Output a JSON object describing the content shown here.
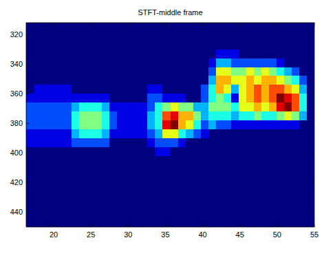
{
  "chart_data": {
    "type": "heatmap",
    "title": "STFT-middle frame",
    "xlim": [
      16.3,
      55
    ],
    "ylim": [
      312,
      450
    ],
    "xticks": [
      20,
      25,
      30,
      35,
      40,
      45,
      50,
      55
    ],
    "yticks": [
      320,
      340,
      360,
      380,
      400,
      420,
      440
    ],
    "zlim": [
      0,
      10
    ],
    "cells": [
      [
        0,
        0,
        0,
        0,
        0,
        0,
        0,
        0,
        0,
        0,
        0,
        0,
        0,
        0,
        0,
        0,
        0,
        0,
        0,
        0,
        0,
        0,
        0,
        0,
        0,
        0,
        0,
        0,
        0,
        0,
        0,
        0,
        0,
        0,
        0,
        0,
        0,
        0
      ],
      [
        0,
        0,
        0,
        0,
        0,
        0,
        0,
        0,
        0,
        0,
        0,
        0,
        0,
        0,
        0,
        0,
        0,
        0,
        0,
        0,
        0,
        0,
        0,
        0,
        0,
        0,
        0,
        0,
        0,
        0,
        0,
        0,
        0,
        0,
        0,
        0,
        0,
        0
      ],
      [
        0,
        0,
        0,
        0,
        0,
        0,
        0,
        0,
        0,
        0,
        0,
        0,
        0,
        0,
        0,
        0,
        0,
        0,
        0,
        0,
        0,
        0,
        0,
        0,
        0,
        0,
        0,
        0,
        0,
        0,
        0,
        0,
        0,
        0,
        0,
        0,
        0,
        0
      ],
      [
        0,
        0,
        0,
        0,
        0,
        0,
        0,
        0,
        0,
        0,
        0,
        0,
        0,
        0,
        0,
        0,
        0,
        0,
        0,
        0,
        0,
        0,
        0,
        0,
        0,
        1,
        1,
        1,
        0,
        0,
        0,
        0,
        0,
        0,
        0,
        0,
        0,
        0
      ],
      [
        0,
        0,
        0,
        0,
        0,
        0,
        0,
        0,
        0,
        0,
        0,
        0,
        0,
        0,
        0,
        0,
        0,
        0,
        0,
        0,
        0,
        0,
        0,
        0,
        1,
        3,
        3,
        2,
        2,
        2,
        2,
        2,
        2,
        1,
        0,
        0,
        0,
        0
      ],
      [
        0,
        0,
        0,
        0,
        0,
        0,
        0,
        0,
        0,
        0,
        0,
        0,
        0,
        0,
        0,
        0,
        0,
        0,
        0,
        0,
        0,
        0,
        0,
        0,
        2,
        6,
        6,
        5,
        5,
        6,
        5,
        6,
        5,
        4,
        3,
        2,
        0,
        0
      ],
      [
        0,
        0,
        0,
        0,
        0,
        0,
        0,
        0,
        0,
        0,
        0,
        0,
        0,
        0,
        0,
        0,
        0,
        0,
        0,
        0,
        0,
        0,
        0,
        0,
        3,
        7,
        7,
        6,
        6,
        7,
        6,
        7,
        7,
        6,
        5,
        4,
        2,
        0
      ],
      [
        0,
        1,
        1,
        1,
        1,
        1,
        0,
        0,
        0,
        0,
        0,
        0,
        0,
        0,
        0,
        0,
        1,
        1,
        0,
        0,
        0,
        0,
        0,
        2,
        4,
        7,
        6,
        3,
        6,
        7,
        8,
        7,
        8,
        8,
        7,
        6,
        3,
        0
      ],
      [
        1,
        1,
        1,
        1,
        1,
        1,
        1,
        1,
        1,
        1,
        1,
        0,
        0,
        0,
        0,
        0,
        2,
        2,
        1,
        1,
        1,
        0,
        0,
        2,
        4,
        5,
        4,
        1,
        6,
        7,
        8,
        7,
        8,
        10,
        9,
        8,
        4,
        0
      ],
      [
        2,
        2,
        2,
        2,
        2,
        2,
        3,
        4,
        4,
        4,
        3,
        1,
        1,
        1,
        1,
        1,
        2,
        4,
        5,
        6,
        5,
        5,
        3,
        3,
        5,
        5,
        5,
        4,
        6,
        6,
        7,
        6,
        7,
        9,
        10,
        8,
        4,
        0
      ],
      [
        2,
        2,
        2,
        2,
        2,
        2,
        4,
        5,
        5,
        5,
        4,
        2,
        1,
        1,
        1,
        1,
        3,
        4,
        8,
        9,
        7,
        7,
        5,
        3,
        4,
        4,
        4,
        3,
        4,
        4,
        5,
        4,
        4,
        5,
        6,
        5,
        3,
        0
      ],
      [
        2,
        2,
        2,
        2,
        2,
        2,
        4,
        5,
        5,
        5,
        4,
        2,
        1,
        1,
        1,
        1,
        3,
        4,
        9,
        10,
        7,
        6,
        4,
        2,
        3,
        2,
        2,
        1,
        1,
        1,
        1,
        1,
        1,
        1,
        1,
        1,
        0,
        0
      ],
      [
        1,
        1,
        1,
        1,
        1,
        1,
        3,
        4,
        4,
        4,
        3,
        1,
        1,
        1,
        1,
        1,
        2,
        3,
        6,
        6,
        4,
        3,
        2,
        1,
        0,
        0,
        0,
        0,
        0,
        0,
        0,
        0,
        0,
        0,
        0,
        0,
        0,
        0
      ],
      [
        1,
        1,
        1,
        1,
        1,
        1,
        2,
        2,
        2,
        2,
        2,
        0,
        0,
        0,
        0,
        0,
        1,
        2,
        2,
        2,
        1,
        0,
        0,
        0,
        0,
        0,
        0,
        0,
        0,
        0,
        0,
        0,
        0,
        0,
        0,
        0,
        0,
        0
      ],
      [
        0,
        0,
        0,
        0,
        0,
        0,
        0,
        0,
        0,
        0,
        0,
        0,
        0,
        0,
        0,
        0,
        0,
        1,
        1,
        0,
        0,
        0,
        0,
        0,
        0,
        0,
        0,
        0,
        0,
        0,
        0,
        0,
        0,
        0,
        0,
        0,
        0,
        0
      ],
      [
        0,
        0,
        0,
        0,
        0,
        0,
        0,
        0,
        0,
        0,
        0,
        0,
        0,
        0,
        0,
        0,
        0,
        0,
        0,
        0,
        0,
        0,
        0,
        0,
        0,
        0,
        0,
        0,
        0,
        0,
        0,
        0,
        0,
        0,
        0,
        0,
        0,
        0
      ],
      [
        0,
        0,
        0,
        0,
        0,
        0,
        0,
        0,
        0,
        0,
        0,
        0,
        0,
        0,
        0,
        0,
        0,
        0,
        0,
        0,
        0,
        0,
        0,
        0,
        0,
        0,
        0,
        0,
        0,
        0,
        0,
        0,
        0,
        0,
        0,
        0,
        0,
        0
      ],
      [
        0,
        0,
        0,
        0,
        0,
        0,
        0,
        0,
        0,
        0,
        0,
        0,
        0,
        0,
        0,
        0,
        0,
        0,
        0,
        0,
        0,
        0,
        0,
        0,
        0,
        0,
        0,
        0,
        0,
        0,
        0,
        0,
        0,
        0,
        0,
        0,
        0,
        0
      ],
      [
        0,
        0,
        0,
        0,
        0,
        0,
        0,
        0,
        0,
        0,
        0,
        0,
        0,
        0,
        0,
        0,
        0,
        0,
        0,
        0,
        0,
        0,
        0,
        0,
        0,
        0,
        0,
        0,
        0,
        0,
        0,
        0,
        0,
        0,
        0,
        0,
        0,
        0
      ],
      [
        0,
        0,
        0,
        0,
        0,
        0,
        0,
        0,
        0,
        0,
        0,
        0,
        0,
        0,
        0,
        0,
        0,
        0,
        0,
        0,
        0,
        0,
        0,
        0,
        0,
        0,
        0,
        0,
        0,
        0,
        0,
        0,
        0,
        0,
        0,
        0,
        0,
        0
      ],
      [
        0,
        0,
        0,
        0,
        0,
        0,
        0,
        0,
        0,
        0,
        0,
        0,
        0,
        0,
        0,
        0,
        0,
        0,
        0,
        0,
        0,
        0,
        0,
        0,
        0,
        0,
        0,
        0,
        0,
        0,
        0,
        0,
        0,
        0,
        0,
        0,
        0,
        0
      ],
      [
        0,
        0,
        0,
        0,
        0,
        0,
        0,
        0,
        0,
        0,
        0,
        0,
        0,
        0,
        0,
        0,
        0,
        0,
        0,
        0,
        0,
        0,
        0,
        0,
        0,
        0,
        0,
        0,
        0,
        0,
        0,
        0,
        0,
        0,
        0,
        0,
        0,
        0
      ],
      [
        0,
        0,
        0,
        0,
        0,
        0,
        0,
        0,
        0,
        0,
        0,
        0,
        0,
        0,
        0,
        0,
        0,
        0,
        0,
        0,
        0,
        0,
        0,
        0,
        0,
        0,
        0,
        0,
        0,
        0,
        0,
        0,
        0,
        0,
        0,
        0,
        0,
        0
      ]
    ]
  }
}
